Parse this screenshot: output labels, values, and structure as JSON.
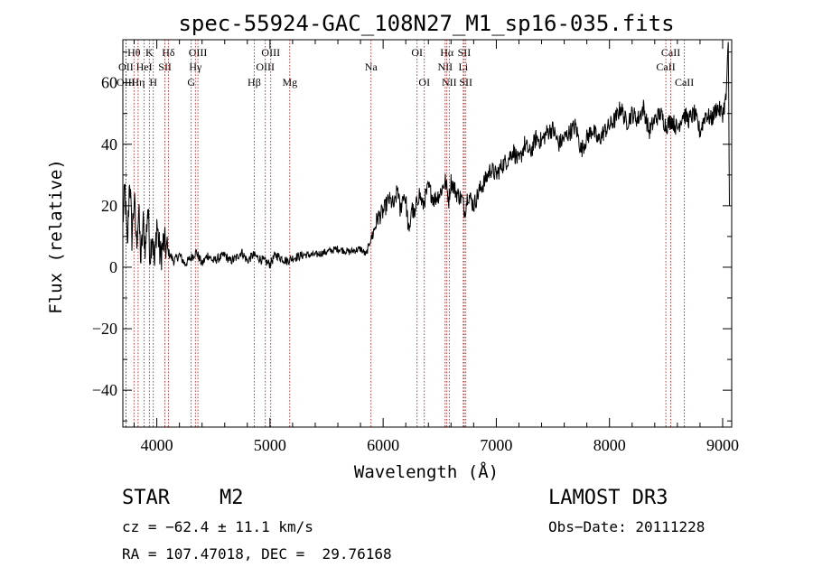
{
  "chart_data": {
    "type": "line",
    "title": "spec-55924-GAC_108N27_M1_sp16-035.fits",
    "xlabel": "Wavelength (Å)",
    "ylabel": "Flux (relative)",
    "xlim": [
      3700,
      9080
    ],
    "ylim": [
      -52,
      74
    ],
    "xticks": [
      4000,
      5000,
      6000,
      7000,
      8000,
      9000
    ],
    "yticks": [
      -40,
      -20,
      0,
      20,
      40,
      60
    ],
    "xtick_labels": [
      "4000",
      "5000",
      "6000",
      "7000",
      "8000",
      "9000"
    ],
    "ytick_labels": [
      "−40",
      "−20",
      "0",
      "20",
      "40",
      "60"
    ],
    "series": [
      {
        "name": "spectrum",
        "x": [
          3700,
          3720,
          3740,
          3760,
          3780,
          3800,
          3820,
          3840,
          3860,
          3880,
          3900,
          3920,
          3940,
          3960,
          3980,
          4000,
          4030,
          4060,
          4100,
          4150,
          4200,
          4250,
          4300,
          4350,
          4400,
          4450,
          4500,
          4550,
          4600,
          4650,
          4700,
          4750,
          4800,
          4850,
          4900,
          4950,
          5000,
          5050,
          5100,
          5150,
          5200,
          5300,
          5400,
          5500,
          5600,
          5700,
          5800,
          5850,
          5880,
          5900,
          5920,
          5950,
          6000,
          6050,
          6100,
          6130,
          6150,
          6180,
          6200,
          6230,
          6250,
          6280,
          6300,
          6320,
          6350,
          6400,
          6450,
          6500,
          6550,
          6580,
          6600,
          6650,
          6700,
          6720,
          6750,
          6800,
          6850,
          6900,
          6950,
          7000,
          7050,
          7100,
          7150,
          7200,
          7250,
          7300,
          7350,
          7400,
          7450,
          7500,
          7550,
          7600,
          7650,
          7700,
          7750,
          7800,
          7850,
          7900,
          7950,
          8000,
          8050,
          8100,
          8150,
          8200,
          8250,
          8300,
          8350,
          8400,
          8450,
          8500,
          8550,
          8600,
          8650,
          8700,
          8750,
          8800,
          8850,
          8900,
          8950,
          9000,
          9030,
          9050,
          9060
        ],
        "values": [
          15,
          25,
          5,
          30,
          10,
          22,
          8,
          18,
          2,
          14,
          6,
          20,
          4,
          12,
          0,
          15,
          3,
          8,
          5,
          2,
          4,
          1,
          3,
          5,
          1,
          4,
          2,
          3,
          4,
          2,
          3,
          5,
          2,
          4,
          3,
          2,
          1,
          4,
          3,
          2,
          3,
          4,
          4,
          5,
          6,
          5,
          6,
          4,
          8,
          10,
          12,
          16,
          18,
          22,
          20,
          26,
          18,
          24,
          22,
          10,
          20,
          16,
          22,
          24,
          20,
          26,
          22,
          24,
          28,
          22,
          28,
          24,
          22,
          18,
          24,
          20,
          25,
          28,
          32,
          30,
          33,
          35,
          38,
          34,
          40,
          37,
          42,
          41,
          44,
          45,
          40,
          42,
          44,
          46,
          38,
          42,
          45,
          41,
          44,
          46,
          48,
          52,
          47,
          50,
          48,
          52,
          44,
          48,
          50,
          46,
          48,
          45,
          50,
          48,
          50,
          44,
          50,
          48,
          52,
          50,
          55,
          72,
          20
        ]
      }
    ],
    "spectral_lines": [
      {
        "label": "Hθ",
        "x": 3798,
        "row": 1
      },
      {
        "label": "OII",
        "x": 3727,
        "row": 2
      },
      {
        "label": "OIII",
        "x": 3727,
        "row": 3
      },
      {
        "label": "K",
        "x": 3934,
        "row": 1
      },
      {
        "label": "HeI",
        "x": 3889,
        "row": 2
      },
      {
        "label": "Hη",
        "x": 3835,
        "row": 3
      },
      {
        "label": "Hδ",
        "x": 4102,
        "row": 1
      },
      {
        "label": "SII",
        "x": 4072,
        "row": 2
      },
      {
        "label": "H",
        "x": 3969,
        "row": 3
      },
      {
        "label": "OIII",
        "x": 4363,
        "row": 1
      },
      {
        "label": "Hγ",
        "x": 4341,
        "row": 2
      },
      {
        "label": "G",
        "x": 4304,
        "row": 3
      },
      {
        "label": "OIII",
        "x": 5007,
        "row": 1
      },
      {
        "label": "OIII",
        "x": 4959,
        "row": 2
      },
      {
        "label": "Hβ",
        "x": 4861,
        "row": 3
      },
      {
        "label": "Mg",
        "x": 5175,
        "row": 3
      },
      {
        "label": "Na",
        "x": 5893,
        "row": 2
      },
      {
        "label": "OI",
        "x": 6300,
        "row": 1
      },
      {
        "label": "OI",
        "x": 6364,
        "row": 3
      },
      {
        "label": "Hα",
        "x": 6563,
        "row": 1
      },
      {
        "label": "NII",
        "x": 6548,
        "row": 2
      },
      {
        "label": "NII",
        "x": 6584,
        "row": 3
      },
      {
        "label": "SII",
        "x": 6717,
        "row": 1
      },
      {
        "label": "Li",
        "x": 6708,
        "row": 2
      },
      {
        "label": "SII",
        "x": 6731,
        "row": 3
      },
      {
        "label": "CaII",
        "x": 8542,
        "row": 1
      },
      {
        "label": "CaII",
        "x": 8498,
        "row": 2
      },
      {
        "label": "CaII",
        "x": 8662,
        "row": 3
      }
    ]
  },
  "info": {
    "object_type": "STAR",
    "subclass": "M2",
    "survey": "LAMOST DR3",
    "cz": "cz = −62.4 ± 11.1 km/s",
    "obs_date": "Obs−Date: 20111228",
    "coords": "RA = 107.47018, DEC =  29.76168"
  },
  "colors": {
    "spectrum": "#000000",
    "line_marker": "#c00000"
  }
}
